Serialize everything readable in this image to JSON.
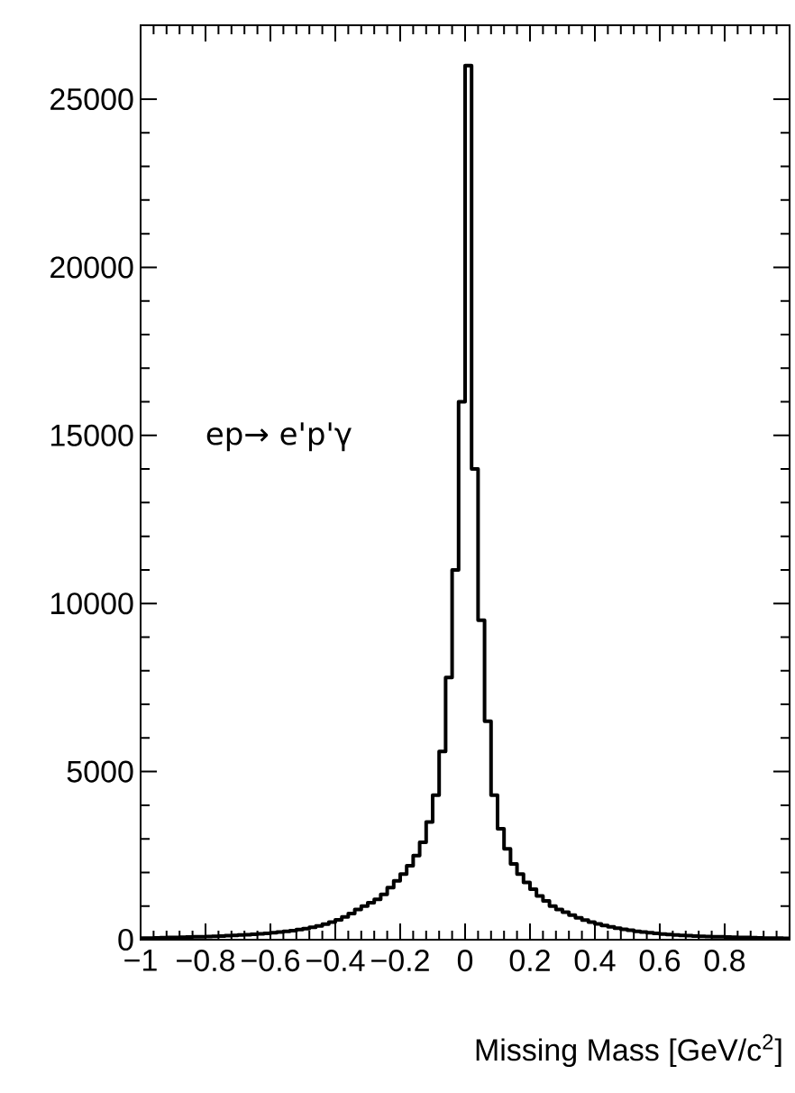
{
  "chart_data": {
    "type": "histogram",
    "xlabel": "Missing Mass [GeV/c$^{2}$]",
    "annotations": [
      "ep→ e'p'γ"
    ],
    "color": "#000000",
    "xlim": [
      -1,
      1
    ],
    "ylim": [
      0,
      27200
    ],
    "xticks": [
      {
        "value": -1,
        "label": "−1"
      },
      {
        "value": -0.8,
        "label": "−0.8"
      },
      {
        "value": -0.6,
        "label": "−0.6"
      },
      {
        "value": -0.4,
        "label": "−0.4"
      },
      {
        "value": -0.2,
        "label": "−0.2"
      },
      0,
      0.2,
      0.4,
      0.6,
      0.8,
      {
        "value": 1,
        "label": null
      }
    ],
    "yticks": [
      0,
      5000,
      10000,
      15000,
      20000,
      25000
    ],
    "bins": [
      -1,
      -0.98,
      -0.96,
      -0.94,
      -0.92,
      -0.9,
      -0.88,
      -0.86,
      -0.84,
      -0.82,
      -0.8,
      -0.78,
      -0.76,
      -0.74,
      -0.72,
      -0.7,
      -0.68,
      -0.66,
      -0.64,
      -0.62,
      -0.6,
      -0.58,
      -0.56,
      -0.54,
      -0.52,
      -0.5,
      -0.48,
      -0.46,
      -0.44,
      -0.42,
      -0.4,
      -0.38,
      -0.36,
      -0.34,
      -0.32,
      -0.3,
      -0.28,
      -0.26,
      -0.24,
      -0.22,
      -0.2,
      -0.18,
      -0.16,
      -0.14,
      -0.12,
      -0.1,
      -0.08,
      -0.06,
      -0.04,
      -0.02,
      0,
      0.02,
      0.04,
      0.06,
      0.08,
      0.1,
      0.12,
      0.14,
      0.16,
      0.18,
      0.2,
      0.22,
      0.24,
      0.26,
      0.28,
      0.3,
      0.32,
      0.34,
      0.36,
      0.38,
      0.4,
      0.42,
      0.44,
      0.46,
      0.48,
      0.5,
      0.52,
      0.54,
      0.56,
      0.58,
      0.6,
      0.62,
      0.64,
      0.66,
      0.68,
      0.7,
      0.72,
      0.74,
      0.76,
      0.78,
      0.8,
      0.82,
      0.84,
      0.86,
      0.88,
      0.9,
      0.92,
      0.94,
      0.96,
      0.98,
      1
    ],
    "values": [
      45,
      50,
      55,
      60,
      65,
      70,
      75,
      80,
      85,
      90,
      95,
      100,
      110,
      120,
      130,
      140,
      150,
      160,
      175,
      190,
      210,
      230,
      250,
      270,
      300,
      330,
      370,
      410,
      460,
      520,
      590,
      680,
      780,
      900,
      1000,
      1100,
      1200,
      1350,
      1550,
      1750,
      1950,
      2200,
      2500,
      2900,
      3500,
      4300,
      5600,
      7800,
      11000,
      16000,
      26000,
      14000,
      9500,
      6500,
      4300,
      3300,
      2700,
      2250,
      1950,
      1700,
      1500,
      1300,
      1150,
      1000,
      900,
      820,
      730,
      650,
      580,
      520,
      470,
      420,
      380,
      340,
      310,
      280,
      250,
      230,
      210,
      190,
      170,
      155,
      140,
      130,
      120,
      110,
      100,
      95,
      90,
      85,
      80,
      75,
      70,
      65,
      60,
      55,
      50,
      50,
      45,
      40
    ]
  }
}
